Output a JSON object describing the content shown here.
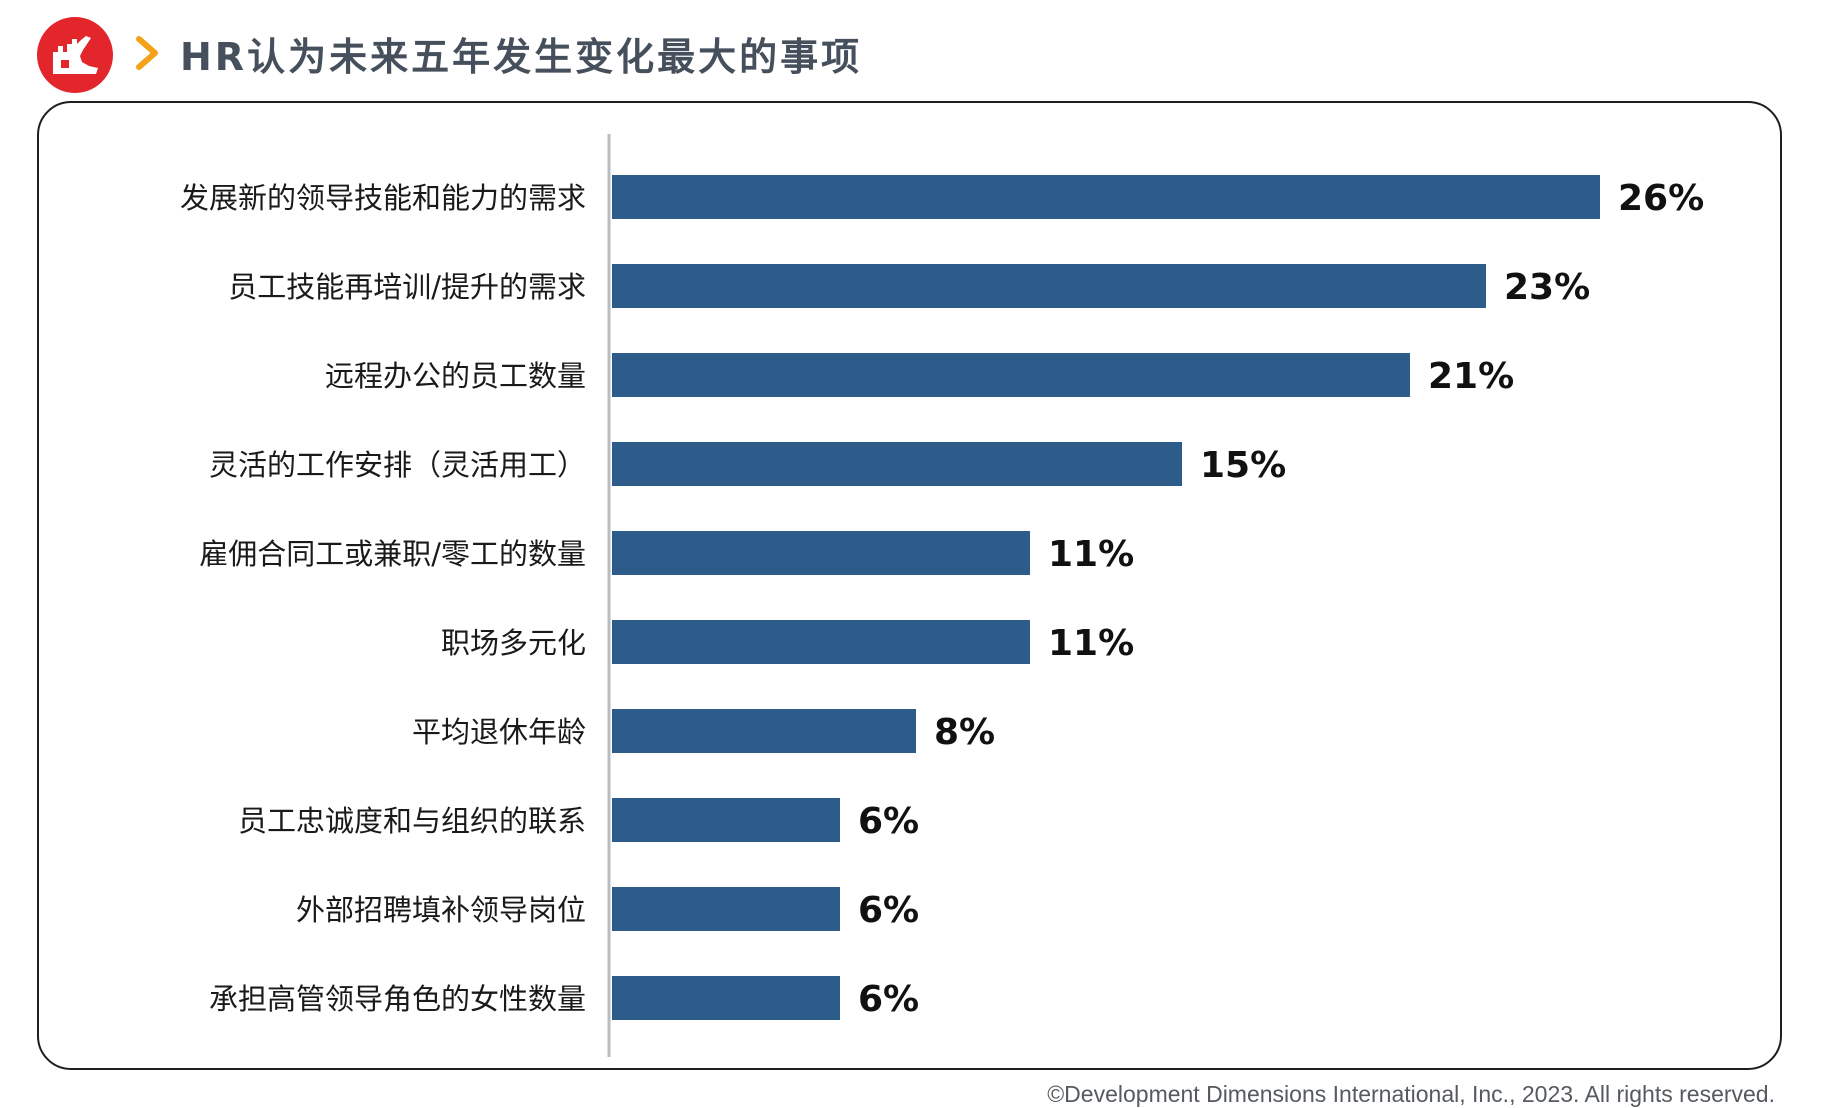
{
  "header": {
    "title": "HR认为未来五年发生变化最大的事项",
    "logo_icon": "wall-logo-icon",
    "arrow_icon": "chevron-right-icon"
  },
  "footer": {
    "copyright": "©Development Dimensions International, Inc., 2023. All rights reserved."
  },
  "colors": {
    "bar": "#2d5c8a",
    "logo": "#e2262b",
    "accent": "#f5a21b",
    "title": "#45505c"
  },
  "chart_data": {
    "type": "bar",
    "orientation": "horizontal",
    "categories": [
      "发展新的领导技能和能力的需求",
      "员工技能再培训/提升的需求",
      "远程办公的员工数量",
      "灵活的工作安排（灵活用工）",
      "雇佣合同工或兼职/零工的数量",
      "职场多元化",
      "平均退休年龄",
      "员工忠诚度和与组织的联系",
      "外部招聘填补领导岗位",
      "承担高管领导角色的女性数量"
    ],
    "values": [
      26,
      23,
      21,
      15,
      11,
      11,
      8,
      6,
      6,
      6
    ],
    "value_labels": [
      "26%",
      "23%",
      "21%",
      "15%",
      "11%",
      "11%",
      "8%",
      "6%",
      "6%",
      "6%"
    ],
    "unit": "%",
    "xlim": [
      0,
      28
    ],
    "grid": false,
    "legend": "none"
  }
}
